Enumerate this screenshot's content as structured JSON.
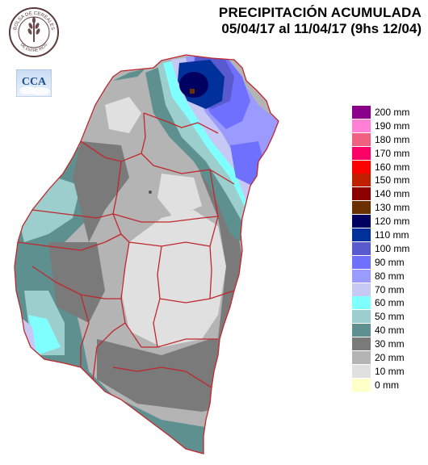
{
  "header": {
    "title_line1": "PRECIPITACIÓN ACUMULADA",
    "title_line2": "05/04/17 al 11/04/17 (9hs 12/04)"
  },
  "logos": {
    "bolsa_text_top": "BOLSA DE CEREALES",
    "bolsa_text_bottom": "DE ENTRE RIOS",
    "cca_text": "CCA"
  },
  "legend": [
    {
      "label": "200 mm",
      "color": "#8b008b"
    },
    {
      "label": "190 mm",
      "color": "#ff80d5"
    },
    {
      "label": "180 mm",
      "color": "#f06080"
    },
    {
      "label": "170 mm",
      "color": "#ff0066"
    },
    {
      "label": "160 mm",
      "color": "#ff0000"
    },
    {
      "label": "150 mm",
      "color": "#c02000"
    },
    {
      "label": "140 mm",
      "color": "#8b0000"
    },
    {
      "label": "130 mm",
      "color": "#6b3000"
    },
    {
      "label": "120 mm",
      "color": "#000060"
    },
    {
      "label": "110 mm",
      "color": "#00309a"
    },
    {
      "label": "100 mm",
      "color": "#5a5acf"
    },
    {
      "label": "90 mm",
      "color": "#7070ff"
    },
    {
      "label": "80 mm",
      "color": "#9a9aff"
    },
    {
      "label": "70 mm",
      "color": "#c8c8f5"
    },
    {
      "label": "60 mm",
      "color": "#80ffff"
    },
    {
      "label": "50 mm",
      "color": "#9ccece"
    },
    {
      "label": "40 mm",
      "color": "#5f9090"
    },
    {
      "label": "30 mm",
      "color": "#7a7a7a"
    },
    {
      "label": "20 mm",
      "color": "#b4b4b4"
    },
    {
      "label": "10 mm",
      "color": "#e0e0e0"
    },
    {
      "label": "0 mm",
      "color": "#ffffc8"
    }
  ]
}
